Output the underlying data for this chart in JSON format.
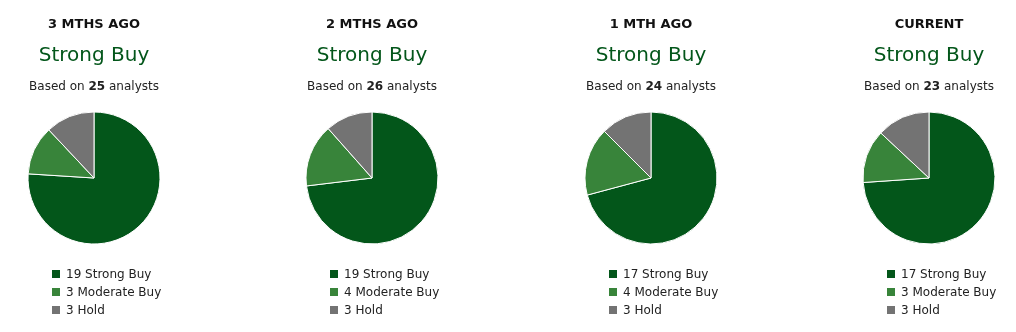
{
  "chart_data": [
    {
      "type": "pie",
      "title": "3 MTHS AGO",
      "subtitle": "Strong Buy",
      "annotations": [
        "Based on 25 analysts"
      ],
      "categories": [
        "19 Strong Buy",
        "3 Moderate Buy",
        "3 Hold"
      ],
      "values": [
        19,
        3,
        3
      ],
      "colors": [
        "#03561a",
        "#38843a",
        "#737373"
      ],
      "legend": "bottom"
    },
    {
      "type": "pie",
      "title": "2 MTHS AGO",
      "subtitle": "Strong Buy",
      "annotations": [
        "Based on 26 analysts"
      ],
      "categories": [
        "19 Strong Buy",
        "4 Moderate Buy",
        "3 Hold"
      ],
      "values": [
        19,
        4,
        3
      ],
      "colors": [
        "#03561a",
        "#38843a",
        "#737373"
      ],
      "legend": "bottom"
    },
    {
      "type": "pie",
      "title": "1 MTH AGO",
      "subtitle": "Strong Buy",
      "annotations": [
        "Based on 24 analysts"
      ],
      "categories": [
        "17 Strong Buy",
        "4 Moderate Buy",
        "3 Hold"
      ],
      "values": [
        17,
        4,
        3
      ],
      "colors": [
        "#03561a",
        "#38843a",
        "#737373"
      ],
      "legend": "bottom"
    },
    {
      "type": "pie",
      "title": "CURRENT",
      "subtitle": "Strong Buy",
      "annotations": [
        "Based on 23 analysts"
      ],
      "categories": [
        "17 Strong Buy",
        "3 Moderate Buy",
        "3 Hold"
      ],
      "values": [
        17,
        3,
        3
      ],
      "colors": [
        "#03561a",
        "#38843a",
        "#737373"
      ],
      "legend": "bottom"
    }
  ]
}
